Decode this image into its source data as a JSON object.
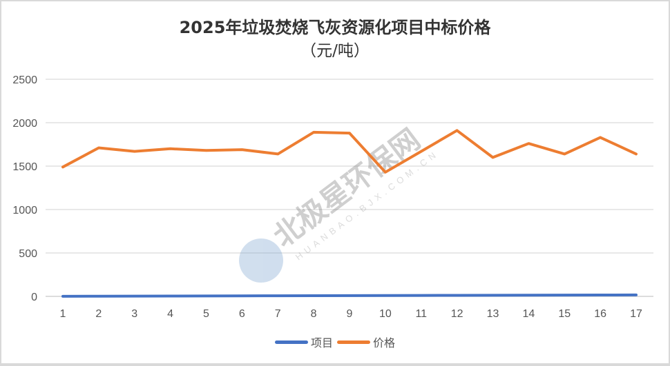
{
  "chart_data": {
    "type": "line",
    "title": "2025年垃圾焚烧飞灰资源化项目中标价格",
    "subtitle": "（元/吨）",
    "xlabel": "",
    "ylabel": "",
    "categories": [
      "1",
      "2",
      "3",
      "4",
      "5",
      "6",
      "7",
      "8",
      "9",
      "10",
      "11",
      "12",
      "13",
      "14",
      "15",
      "16",
      "17"
    ],
    "yticks": [
      "0",
      "500",
      "1000",
      "1500",
      "2000",
      "2500"
    ],
    "ylim": [
      0,
      2500
    ],
    "grid": true,
    "legend_position": "bottom",
    "series": [
      {
        "name": "项目",
        "color": "#4472C4",
        "values": [
          1,
          2,
          3,
          4,
          5,
          6,
          7,
          8,
          9,
          10,
          11,
          12,
          13,
          14,
          15,
          16,
          17
        ]
      },
      {
        "name": "价格",
        "color": "#ED7D31",
        "values": [
          1490,
          1710,
          1670,
          1700,
          1680,
          1690,
          1640,
          1890,
          1880,
          1430,
          1670,
          1910,
          1600,
          1760,
          1640,
          1830,
          1640
        ]
      }
    ]
  },
  "watermark": {
    "text": "北极星环保网",
    "url_text": "HUANBAO.BJX.COM.CN"
  },
  "legend": [
    {
      "label": "项目",
      "color": "#4472C4"
    },
    {
      "label": "价格",
      "color": "#ED7D31"
    }
  ]
}
